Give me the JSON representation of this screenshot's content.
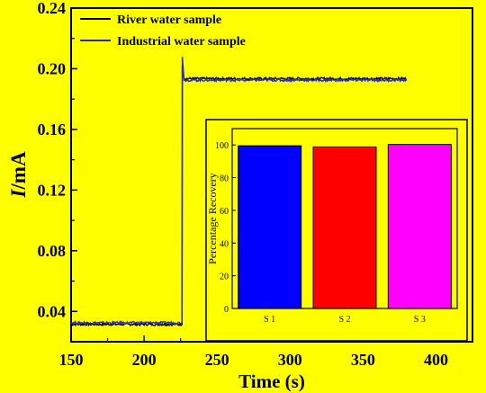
{
  "chart_data": [
    {
      "type": "line",
      "xlabel": "Time (s)",
      "ylabel_italic": "I",
      "ylabel_rest": "/mA",
      "xlim": [
        150,
        425
      ],
      "ylim": [
        0.02,
        0.24
      ],
      "xticks": [
        "150",
        "200",
        "250",
        "300",
        "350",
        "400"
      ],
      "yticks": [
        "0.04",
        "0.08",
        "0.12",
        "0.16",
        "0.20",
        "0.24"
      ],
      "legend_position": "top-left",
      "series": [
        {
          "name": "River water sample",
          "color": "#000000",
          "baseline": 0.0315,
          "step_time": 226,
          "spike": 0.202,
          "plateau": 0.1935,
          "end_time": 380
        },
        {
          "name": "Industrial water sample",
          "color": "#2a2ad6",
          "baseline": 0.0325,
          "step_time": 226,
          "spike": 0.208,
          "plateau": 0.1925,
          "end_time": 380
        }
      ]
    },
    {
      "type": "bar",
      "ylabel": "Percentage Recovery",
      "ylim": [
        0,
        110
      ],
      "yticks": [
        "0",
        "20",
        "40",
        "60",
        "80",
        "100"
      ],
      "categories": [
        "S 1",
        "S 2",
        "S 3"
      ],
      "values": [
        99.5,
        98.8,
        100.3
      ],
      "colors": [
        "#0000ff",
        "#ff0000",
        "#ff00ff"
      ]
    }
  ]
}
